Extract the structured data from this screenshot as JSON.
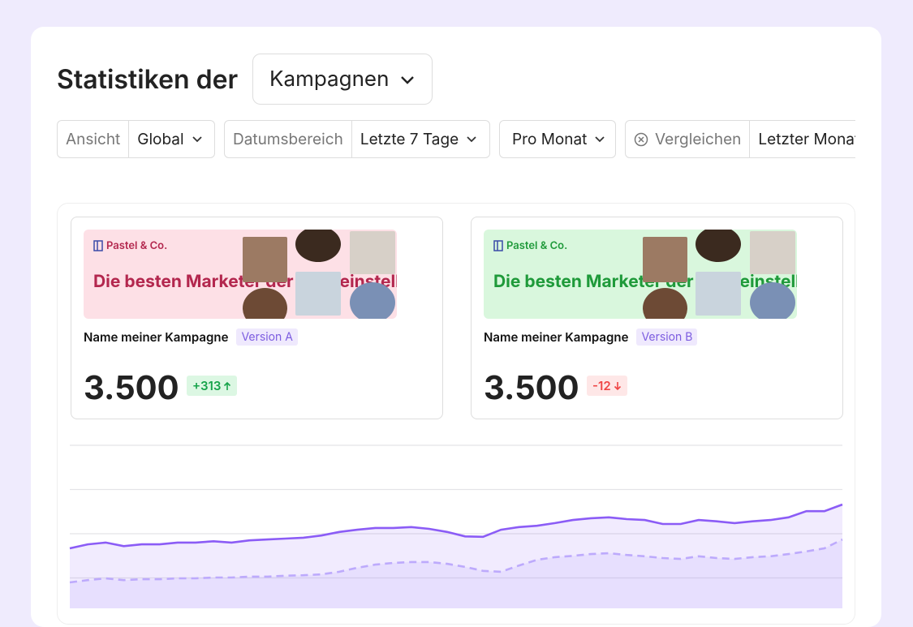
{
  "header": {
    "title": "Statistiken der",
    "dropdown": "Kampagnen"
  },
  "filters": [
    {
      "label": "Ansicht",
      "value": "Global"
    },
    {
      "label": "Datumsbereich",
      "value": "Letzte 7 Tage"
    },
    {
      "value": "Pro Monat"
    },
    {
      "label": "Vergleichen",
      "value": "Letzter Monat"
    }
  ],
  "cards": [
    {
      "brand": "Pastel & Co.",
      "headline": "Die besten Marketer der Welt einstellen",
      "name": "Name meiner Kampagne",
      "version": "Version A",
      "value": "3.500",
      "delta": "+313"
    },
    {
      "brand": "Pastel & Co.",
      "headline": "Die besten Marketer der Welt einstellen",
      "name": "Name meiner Kampagne",
      "version": "Version B",
      "value": "3.500",
      "delta": "-12"
    }
  ],
  "chart_data": {
    "type": "line",
    "ylim": [
      0,
      4
    ],
    "yticks": [
      1,
      2,
      3,
      4
    ],
    "grid": true,
    "series": [
      {
        "color": "#8b5cf6",
        "values": [
          1.67,
          1.76,
          1.8,
          1.72,
          1.76,
          1.76,
          1.8,
          1.8,
          1.83,
          1.8,
          1.85,
          1.87,
          1.89,
          1.91,
          1.96,
          2.04,
          2.09,
          2.13,
          2.13,
          2.15,
          2.11,
          2.04,
          1.94,
          1.93,
          2.09,
          2.15,
          2.18,
          2.24,
          2.31,
          2.35,
          2.37,
          2.33,
          2.31,
          2.22,
          2.22,
          2.31,
          2.28,
          2.24,
          2.28,
          2.31,
          2.37,
          2.51,
          2.51,
          2.66
        ]
      },
      {
        "color": "#c4b5fd",
        "values": [
          0.9,
          0.95,
          0.99,
          0.95,
          0.97,
          0.97,
          0.99,
          0.99,
          1.01,
          1.01,
          1.03,
          1.03,
          1.05,
          1.06,
          1.08,
          1.14,
          1.23,
          1.3,
          1.34,
          1.36,
          1.36,
          1.32,
          1.25,
          1.16,
          1.14,
          1.28,
          1.41,
          1.47,
          1.5,
          1.54,
          1.56,
          1.52,
          1.49,
          1.45,
          1.43,
          1.49,
          1.45,
          1.43,
          1.47,
          1.49,
          1.54,
          1.6,
          1.67,
          1.87
        ]
      }
    ]
  }
}
